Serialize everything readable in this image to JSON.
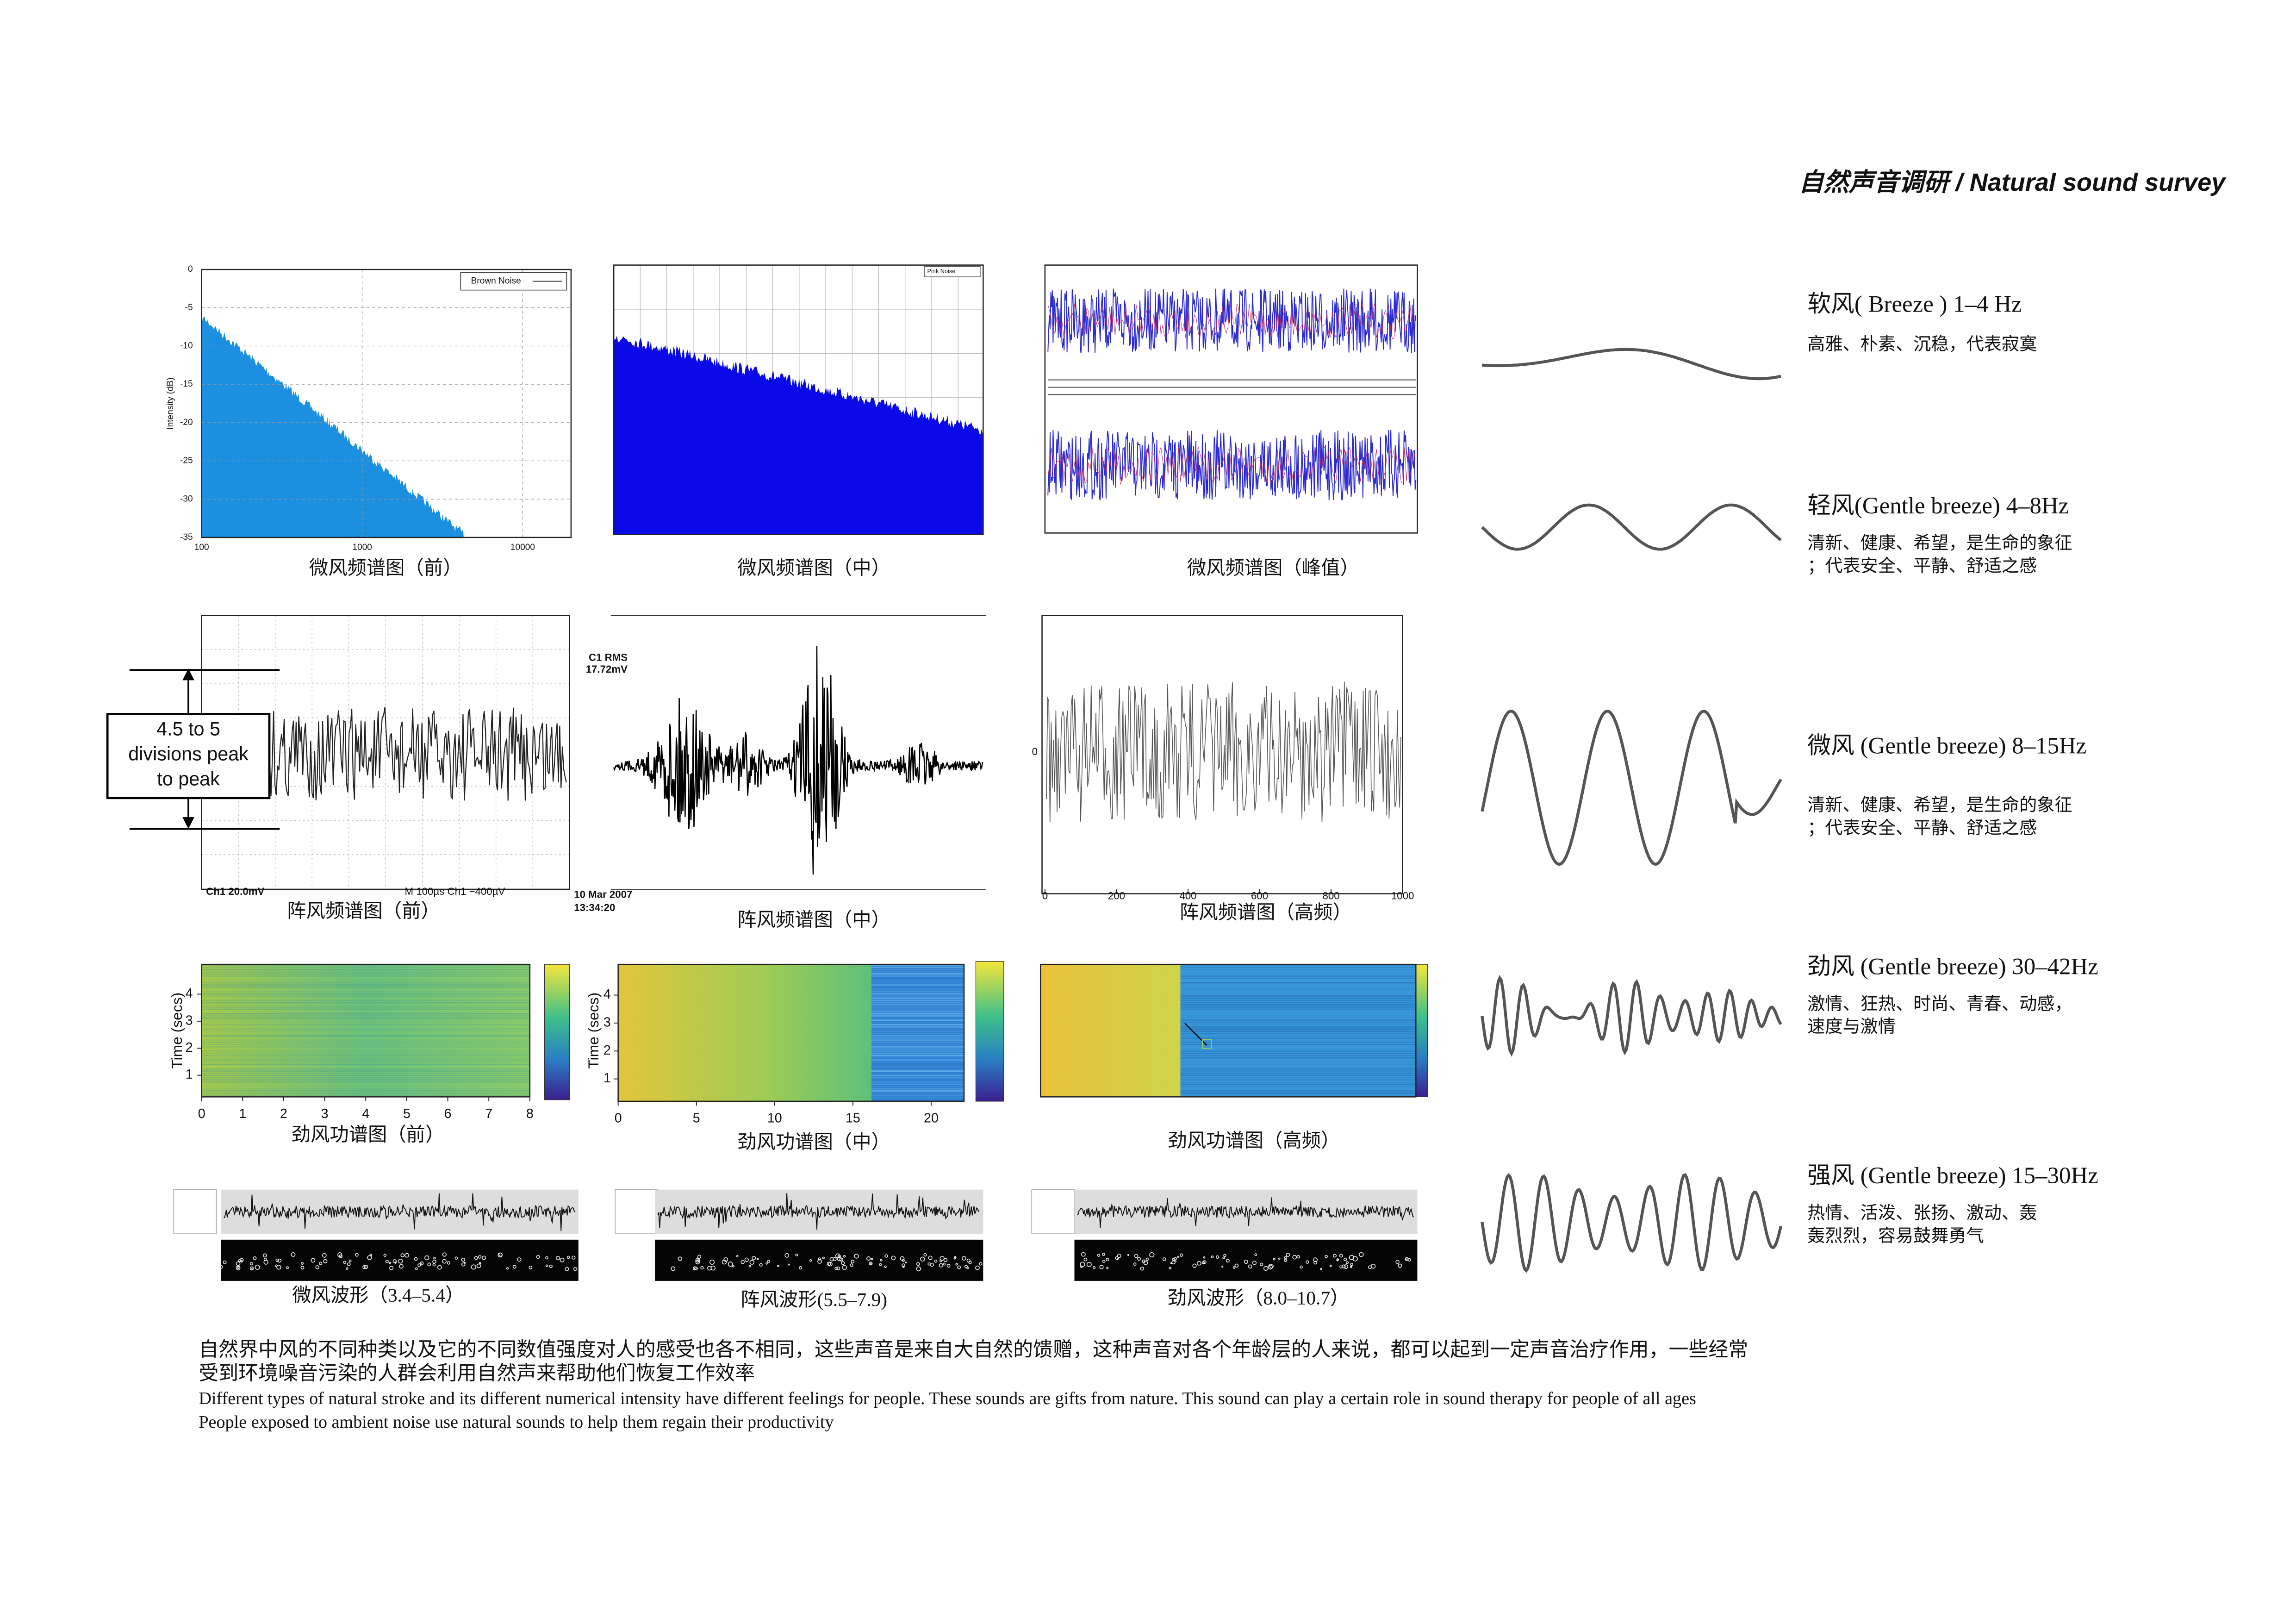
{
  "header": {
    "title": "自然声音调研 / Natural sound survey"
  },
  "figures": [
    {
      "caption": "微风频谱图（前）"
    },
    {
      "caption": "微风频谱图（中）"
    },
    {
      "caption": "微风频谱图（峰值）"
    },
    {
      "caption": "阵风频谱图（前）"
    },
    {
      "caption": "阵风频谱图（中）"
    },
    {
      "caption": "阵风频谱图（高频）"
    },
    {
      "caption": "劲风功谱图（前）"
    },
    {
      "caption": "劲风功谱图（中）"
    },
    {
      "caption": "劲风功谱图（高频）"
    },
    {
      "caption": "微风波形（3.4–5.4）"
    },
    {
      "caption": "阵风波形(5.5–7.9)"
    },
    {
      "caption": "劲风波形（8.0–10.7）"
    }
  ],
  "figure_texts": {
    "legend_1": "Brown Noise",
    "legend_2": "Pink Noise",
    "scope": [
      "Ch1  20.0mV",
      "M 100µs  Ch1  −400µV"
    ],
    "annotation": [
      "4.5 to 5",
      "divisions peak",
      "to peak"
    ],
    "rms": [
      "C1 RMS",
      "17.72mV"
    ],
    "stamp": [
      "10 Mar 2007",
      "13:34:20"
    ],
    "time_label": "Time (secs)"
  },
  "axes": {
    "spectrum": {
      "ylabel": "Intensity (dB)",
      "ylim": [
        -35,
        0
      ],
      "yticks": [
        0,
        -5,
        -10,
        -15,
        -20,
        -25,
        -30,
        -35
      ],
      "xlim": [
        100,
        20000
      ],
      "xticks": [
        100,
        1000,
        10000
      ],
      "xlog": true,
      "grid": true
    },
    "signal": {
      "xlim": [
        0,
        1000
      ],
      "xticks": [
        0,
        200,
        400,
        600,
        800,
        1000
      ],
      "yticks": [
        0
      ]
    },
    "power_1": {
      "xlim": [
        0,
        8
      ],
      "xticks": [
        0,
        1,
        2,
        3,
        4,
        5,
        6,
        7,
        8
      ],
      "ylim": [
        0.2,
        5.1
      ],
      "yticks": [
        1,
        2,
        3,
        4
      ]
    },
    "power_2": {
      "xlim": [
        0,
        22.1
      ],
      "xticks": [
        0,
        5,
        10,
        15,
        20
      ],
      "ylim": [
        0.2,
        5.1
      ],
      "yticks": [
        1,
        2,
        3,
        4
      ]
    }
  },
  "winds": [
    {
      "name": "软风( Breeze )  1–4 Hz",
      "description": [
        "高雅、朴素、沉稳，代表寂寞"
      ]
    },
    {
      "name": "轻风(Gentle breeze)  4–8Hz",
      "description": [
        "清新、健康、希望，是生命的象征",
        "；代表安全、平静、舒适之感"
      ]
    },
    {
      "name": "微风  (Gentle breeze)  8–15Hz",
      "description": [
        "清新、健康、希望，是生命的象征",
        "；代表安全、平静、舒适之感"
      ]
    },
    {
      "name": "劲风 (Gentle breeze)  30–42Hz",
      "description": [
        "激情、狂热、时尚、青春、动感，",
        "速度与激情"
      ]
    },
    {
      "name": "强风 (Gentle breeze)  15–30Hz",
      "description": [
        "热情、活泼、张扬、激动、轰",
        "轰烈烈，容易鼓舞勇气"
      ]
    }
  ],
  "paragraph": {
    "zh": [
      "自然界中风的不同种类以及它的不同数值强度对人的感受也各不相同，这些声音是来自大自然的馈赠，这种声音对各个年龄层的人来说，都可以起到一定声音治疗作用，一些经常",
      "受到环境噪音污染的人群会利用自然声来帮助他们恢复工作效率"
    ],
    "en": [
      "Different types of natural stroke and its different numerical intensity have different feelings for people. These sounds are gifts from nature. This sound can play a certain role in sound therapy for people of all ages",
      "People exposed to ambient noise use natural sounds to help them regain their productivity"
    ]
  }
}
